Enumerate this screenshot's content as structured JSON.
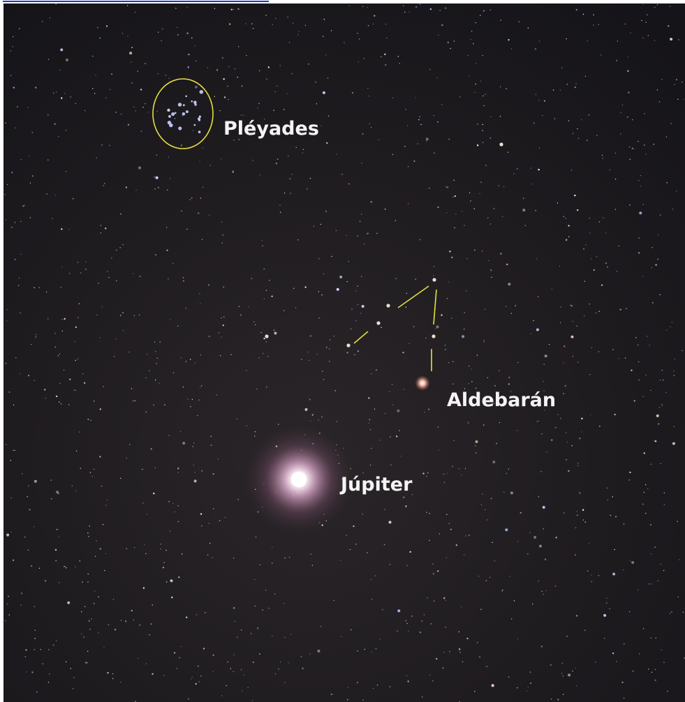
{
  "annotations": [
    {
      "label": "Pléyades"
    },
    {
      "label": "Aldebarán"
    },
    {
      "label": "Júpiter"
    }
  ]
}
